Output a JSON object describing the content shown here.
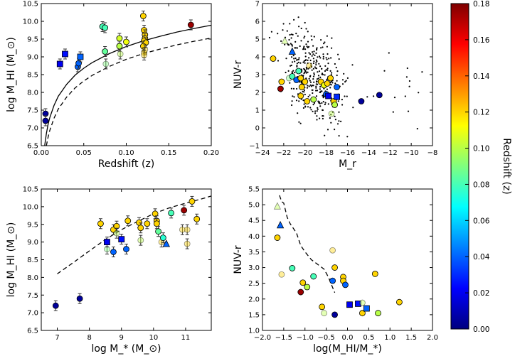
{
  "chart_data": [
    {
      "type": "scatter",
      "title": "",
      "xlabel": "Redshift (z)",
      "ylabel": "log M_HI (M_⊙)",
      "xlim": [
        0.0,
        0.2
      ],
      "ylim": [
        6.5,
        10.5
      ],
      "xticks": [
        "0.00",
        "0.05",
        "0.10",
        "0.15",
        "0.20"
      ],
      "yticks": [
        "6.5",
        "7.0",
        "7.5",
        "8.0",
        "8.5",
        "9.0",
        "9.5",
        "10.0",
        "10.5"
      ],
      "curves": [
        {
          "name": "detection limit (solid)",
          "style": "solid",
          "x": [
            0.004,
            0.006,
            0.008,
            0.01,
            0.015,
            0.02,
            0.03,
            0.04,
            0.05,
            0.06,
            0.08,
            0.1,
            0.12,
            0.14,
            0.16,
            0.18,
            0.2
          ],
          "y": [
            6.5,
            6.84,
            7.1,
            7.29,
            7.63,
            7.89,
            8.23,
            8.49,
            8.68,
            8.84,
            9.09,
            9.29,
            9.45,
            9.58,
            9.7,
            9.8,
            9.89
          ]
        },
        {
          "name": "detection limit (dashed)",
          "style": "dashed",
          "x": [
            0.006,
            0.008,
            0.01,
            0.015,
            0.02,
            0.03,
            0.04,
            0.05,
            0.06,
            0.08,
            0.1,
            0.12,
            0.14,
            0.16,
            0.18,
            0.2
          ],
          "y": [
            6.5,
            6.74,
            6.93,
            7.27,
            7.53,
            7.87,
            8.13,
            8.32,
            8.48,
            8.73,
            8.93,
            9.09,
            9.22,
            9.34,
            9.44,
            9.53
          ]
        }
      ],
      "points": [
        {
          "x": 0.005,
          "y": 7.4,
          "z": 0.005,
          "m": "c"
        },
        {
          "x": 0.005,
          "y": 7.2,
          "z": 0.005,
          "m": "c"
        },
        {
          "x": 0.022,
          "y": 8.8,
          "z": 0.02,
          "m": "s"
        },
        {
          "x": 0.028,
          "y": 9.08,
          "z": 0.025,
          "m": "s"
        },
        {
          "x": 0.043,
          "y": 8.72,
          "z": 0.04,
          "m": "c"
        },
        {
          "x": 0.044,
          "y": 8.82,
          "z": 0.04,
          "m": "c"
        },
        {
          "x": 0.046,
          "y": 9.0,
          "z": 0.04,
          "m": "s"
        },
        {
          "x": 0.072,
          "y": 9.85,
          "z": 0.08,
          "m": "c"
        },
        {
          "x": 0.075,
          "y": 9.82,
          "z": 0.08,
          "m": "c"
        },
        {
          "x": 0.075,
          "y": 9.15,
          "z": 0.085,
          "m": "c"
        },
        {
          "x": 0.076,
          "y": 8.8,
          "z": 0.09,
          "m": "c",
          "faint": true
        },
        {
          "x": 0.092,
          "y": 9.52,
          "z": 0.105,
          "m": "c"
        },
        {
          "x": 0.092,
          "y": 9.3,
          "z": 0.1,
          "m": "c"
        },
        {
          "x": 0.093,
          "y": 9.08,
          "z": 0.1,
          "m": "c",
          "faint": true
        },
        {
          "x": 0.1,
          "y": 9.42,
          "z": 0.11,
          "m": "c"
        },
        {
          "x": 0.12,
          "y": 10.15,
          "z": 0.12,
          "m": "c"
        },
        {
          "x": 0.121,
          "y": 9.75,
          "z": 0.12,
          "m": "c"
        },
        {
          "x": 0.122,
          "y": 9.62,
          "z": 0.12,
          "m": "c"
        },
        {
          "x": 0.122,
          "y": 9.52,
          "z": 0.12,
          "m": "c"
        },
        {
          "x": 0.121,
          "y": 9.45,
          "z": 0.12,
          "m": "c"
        },
        {
          "x": 0.123,
          "y": 9.4,
          "z": 0.12,
          "m": "c"
        },
        {
          "x": 0.12,
          "y": 9.3,
          "z": 0.12,
          "m": "c"
        },
        {
          "x": 0.122,
          "y": 9.2,
          "z": 0.12,
          "m": "c",
          "faint": true
        },
        {
          "x": 0.121,
          "y": 9.12,
          "z": 0.12,
          "m": "c",
          "faint": true
        },
        {
          "x": 0.121,
          "y": 9.05,
          "z": 0.12,
          "m": "c",
          "faint": true
        },
        {
          "x": 0.176,
          "y": 9.9,
          "z": 0.175,
          "m": "c"
        }
      ]
    },
    {
      "type": "scatter",
      "title": "",
      "xlabel": "M_r",
      "ylabel": "NUV-r",
      "xlim": [
        -24,
        -8
      ],
      "ylim": [
        -1,
        7
      ],
      "xticks": [
        "−24",
        "−22",
        "−20",
        "−18",
        "−16",
        "−14",
        "−12",
        "−10",
        "−8"
      ],
      "yticks": [
        "−1",
        "0",
        "1",
        "2",
        "3",
        "4",
        "5",
        "6",
        "7"
      ],
      "background": "comparison sample (small black dots)",
      "points": [
        {
          "x": -22.3,
          "y": 2.2,
          "z": 0.175,
          "m": "c"
        },
        {
          "x": -22.2,
          "y": 2.6,
          "z": 0.12,
          "m": "c"
        },
        {
          "x": -23.0,
          "y": 3.9,
          "z": 0.12,
          "m": "c"
        },
        {
          "x": -21.9,
          "y": 4.9,
          "z": 0.1,
          "m": "t",
          "faint": true
        },
        {
          "x": -21.2,
          "y": 4.3,
          "z": 0.04,
          "m": "t"
        },
        {
          "x": -21.5,
          "y": 2.8,
          "z": 0.09,
          "m": "c",
          "faint": true
        },
        {
          "x": -21.2,
          "y": 2.9,
          "z": 0.08,
          "m": "c"
        },
        {
          "x": -20.6,
          "y": 3.2,
          "z": 0.08,
          "m": "c"
        },
        {
          "x": -20.8,
          "y": 2.7,
          "z": 0.04,
          "m": "c"
        },
        {
          "x": -20.4,
          "y": 2.8,
          "z": 0.12,
          "m": "c"
        },
        {
          "x": -20.3,
          "y": 2.3,
          "z": 0.12,
          "m": "c"
        },
        {
          "x": -20.0,
          "y": 2.6,
          "z": 0.12,
          "m": "c"
        },
        {
          "x": -20.4,
          "y": 1.8,
          "z": 0.12,
          "m": "c"
        },
        {
          "x": -19.8,
          "y": 1.5,
          "z": 0.12,
          "m": "c"
        },
        {
          "x": -19.2,
          "y": 1.6,
          "z": 0.1,
          "m": "c"
        },
        {
          "x": -19.6,
          "y": 3.5,
          "z": 0.12,
          "m": "c",
          "faint": true
        },
        {
          "x": -18.5,
          "y": 2.6,
          "z": 0.12,
          "m": "c"
        },
        {
          "x": -18.2,
          "y": 2.4,
          "z": 0.11,
          "m": "c"
        },
        {
          "x": -18.0,
          "y": 1.9,
          "z": 0.04,
          "m": "c"
        },
        {
          "x": -17.9,
          "y": 2.5,
          "z": 0.12,
          "m": "c"
        },
        {
          "x": -17.6,
          "y": 2.8,
          "z": 0.12,
          "m": "c"
        },
        {
          "x": -17.8,
          "y": 1.8,
          "z": 0.02,
          "m": "s"
        },
        {
          "x": -17.3,
          "y": 1.5,
          "z": 0.12,
          "m": "c"
        },
        {
          "x": -17.0,
          "y": 1.75,
          "z": 0.03,
          "m": "s"
        },
        {
          "x": -17.2,
          "y": 1.3,
          "z": 0.1,
          "m": "c"
        },
        {
          "x": -17.5,
          "y": 0.8,
          "z": 0.1,
          "m": "c",
          "faint": true
        },
        {
          "x": -17.0,
          "y": 2.3,
          "z": 0.04,
          "m": "c"
        },
        {
          "x": -14.7,
          "y": 1.5,
          "z": 0.005,
          "m": "c"
        },
        {
          "x": -13.0,
          "y": 1.85,
          "z": 0.005,
          "m": "c"
        }
      ]
    },
    {
      "type": "scatter",
      "title": "",
      "xlabel": "log M_* (M_⊙)",
      "ylabel": "log M_HI (M_⊙)",
      "xlim": [
        6.5,
        11.8
      ],
      "ylim": [
        6.5,
        10.5
      ],
      "xticks": [
        "7",
        "8",
        "9",
        "10",
        "11"
      ],
      "yticks": [
        "6.5",
        "7.0",
        "7.5",
        "8.0",
        "8.5",
        "9.0",
        "9.5",
        "10.0",
        "10.5"
      ],
      "curves": [
        {
          "name": "dashed relation",
          "style": "dashed",
          "x": [
            7.0,
            7.5,
            8.0,
            8.5,
            9.0,
            9.5,
            10.0,
            10.5,
            11.0,
            11.5,
            11.8
          ],
          "y": [
            8.1,
            8.42,
            8.75,
            9.07,
            9.35,
            9.58,
            9.8,
            9.97,
            10.1,
            10.22,
            10.3
          ]
        }
      ],
      "points": [
        {
          "x": 6.95,
          "y": 7.2,
          "z": 0.005,
          "m": "c"
        },
        {
          "x": 7.7,
          "y": 7.4,
          "z": 0.005,
          "m": "c"
        },
        {
          "x": 8.35,
          "y": 9.52,
          "z": 0.12,
          "m": "c"
        },
        {
          "x": 8.55,
          "y": 8.8,
          "z": 0.09,
          "m": "c",
          "faint": true
        },
        {
          "x": 8.55,
          "y": 9.0,
          "z": 0.02,
          "m": "s"
        },
        {
          "x": 8.75,
          "y": 9.35,
          "z": 0.12,
          "m": "c"
        },
        {
          "x": 8.75,
          "y": 8.72,
          "z": 0.04,
          "m": "c"
        },
        {
          "x": 8.85,
          "y": 9.45,
          "z": 0.12,
          "m": "c"
        },
        {
          "x": 8.85,
          "y": 9.25,
          "z": 0.1,
          "m": "c",
          "faint": true
        },
        {
          "x": 9.0,
          "y": 9.08,
          "z": 0.025,
          "m": "s"
        },
        {
          "x": 9.15,
          "y": 8.8,
          "z": 0.04,
          "m": "c"
        },
        {
          "x": 9.2,
          "y": 9.6,
          "z": 0.12,
          "m": "c"
        },
        {
          "x": 9.55,
          "y": 9.55,
          "z": 0.12,
          "m": "c"
        },
        {
          "x": 9.6,
          "y": 9.4,
          "z": 0.12,
          "m": "c"
        },
        {
          "x": 9.6,
          "y": 9.05,
          "z": 0.1,
          "m": "c",
          "faint": true
        },
        {
          "x": 9.8,
          "y": 9.52,
          "z": 0.12,
          "m": "c"
        },
        {
          "x": 10.05,
          "y": 9.8,
          "z": 0.12,
          "m": "c"
        },
        {
          "x": 10.1,
          "y": 9.6,
          "z": 0.12,
          "m": "c"
        },
        {
          "x": 10.1,
          "y": 9.52,
          "z": 0.12,
          "m": "c"
        },
        {
          "x": 10.15,
          "y": 9.3,
          "z": 0.085,
          "m": "c"
        },
        {
          "x": 10.25,
          "y": 9.0,
          "z": 0.12,
          "m": "c",
          "faint": true
        },
        {
          "x": 10.3,
          "y": 9.12,
          "z": 0.075,
          "m": "c"
        },
        {
          "x": 10.4,
          "y": 8.95,
          "z": 0.04,
          "m": "t"
        },
        {
          "x": 10.55,
          "y": 9.82,
          "z": 0.08,
          "m": "c"
        },
        {
          "x": 10.9,
          "y": 9.35,
          "z": 0.12,
          "m": "c",
          "faint": true
        },
        {
          "x": 10.95,
          "y": 9.9,
          "z": 0.175,
          "m": "c"
        },
        {
          "x": 11.05,
          "y": 9.35,
          "z": 0.12,
          "m": "c",
          "faint": true
        },
        {
          "x": 11.05,
          "y": 8.95,
          "z": 0.12,
          "m": "c",
          "faint": true
        },
        {
          "x": 11.2,
          "y": 10.15,
          "z": 0.12,
          "m": "c"
        },
        {
          "x": 11.35,
          "y": 9.65,
          "z": 0.12,
          "m": "c"
        }
      ]
    },
    {
      "type": "scatter",
      "title": "",
      "xlabel": "log(M_HI/M_*)",
      "ylabel": "NUV-r",
      "xlim": [
        -2.0,
        2.0
      ],
      "ylim": [
        1.0,
        5.5
      ],
      "xticks": [
        "−2.0",
        "−1.5",
        "−1.0",
        "−0.5",
        "0.0",
        "0.5",
        "1.0",
        "1.5",
        "2.0"
      ],
      "yticks": [
        "1.0",
        "1.5",
        "2.0",
        "2.5",
        "3.0",
        "3.5",
        "4.0",
        "4.5",
        "5.0",
        "5.5"
      ],
      "curves": [
        {
          "name": "dashed boundary",
          "style": "dashed",
          "x": [
            -1.6,
            -1.55,
            -1.5,
            -1.42,
            -1.35,
            -1.2,
            -1.1,
            -1.0,
            -0.85,
            -0.7,
            -0.55,
            -0.45,
            -0.3
          ],
          "y": [
            5.3,
            5.1,
            5.05,
            4.6,
            4.4,
            4.1,
            3.7,
            3.5,
            3.25,
            3.1,
            2.95,
            2.7,
            2.2
          ]
        }
      ],
      "points": [
        {
          "x": -1.65,
          "y": 4.95,
          "z": 0.1,
          "m": "t",
          "faint": true
        },
        {
          "x": -1.58,
          "y": 4.35,
          "z": 0.04,
          "m": "t"
        },
        {
          "x": -1.65,
          "y": 3.95,
          "z": 0.12,
          "m": "c"
        },
        {
          "x": -1.55,
          "y": 2.78,
          "z": 0.12,
          "m": "c",
          "faint": true
        },
        {
          "x": -1.3,
          "y": 2.98,
          "z": 0.08,
          "m": "c"
        },
        {
          "x": -1.1,
          "y": 2.22,
          "z": 0.175,
          "m": "c"
        },
        {
          "x": -1.05,
          "y": 2.52,
          "z": 0.12,
          "m": "c"
        },
        {
          "x": -0.95,
          "y": 2.38,
          "z": 0.1,
          "m": "c"
        },
        {
          "x": -0.8,
          "y": 2.72,
          "z": 0.08,
          "m": "c"
        },
        {
          "x": -0.6,
          "y": 1.75,
          "z": 0.12,
          "m": "c"
        },
        {
          "x": -0.55,
          "y": 1.55,
          "z": 0.1,
          "m": "c",
          "faint": true
        },
        {
          "x": -0.35,
          "y": 3.55,
          "z": 0.12,
          "m": "c",
          "faint": true
        },
        {
          "x": -0.3,
          "y": 3.0,
          "z": 0.12,
          "m": "c"
        },
        {
          "x": -0.35,
          "y": 2.58,
          "z": 0.04,
          "m": "c"
        },
        {
          "x": -0.3,
          "y": 1.5,
          "z": 0.005,
          "m": "c"
        },
        {
          "x": -0.1,
          "y": 2.7,
          "z": 0.12,
          "m": "c"
        },
        {
          "x": -0.1,
          "y": 2.58,
          "z": 0.12,
          "m": "c"
        },
        {
          "x": -0.05,
          "y": 2.45,
          "z": 0.04,
          "m": "c"
        },
        {
          "x": 0.05,
          "y": 1.82,
          "z": 0.02,
          "m": "s"
        },
        {
          "x": 0.25,
          "y": 1.85,
          "z": 0.025,
          "m": "s"
        },
        {
          "x": 0.35,
          "y": 1.88,
          "z": 0.1,
          "m": "c",
          "faint": true
        },
        {
          "x": 0.35,
          "y": 1.55,
          "z": 0.12,
          "m": "c"
        },
        {
          "x": 0.45,
          "y": 1.7,
          "z": 0.04,
          "m": "s"
        },
        {
          "x": 0.65,
          "y": 2.8,
          "z": 0.12,
          "m": "c"
        },
        {
          "x": 0.72,
          "y": 1.55,
          "z": 0.1,
          "m": "c"
        },
        {
          "x": 1.22,
          "y": 1.9,
          "z": 0.12,
          "m": "c"
        }
      ]
    }
  ],
  "colorbar": {
    "label": "Redshift (z)",
    "min": 0.0,
    "max": 0.18,
    "ticks": [
      "0.00",
      "0.02",
      "0.04",
      "0.06",
      "0.08",
      "0.10",
      "0.12",
      "0.14",
      "0.16",
      "0.18"
    ],
    "colormap": [
      "#00007f",
      "#0000ff",
      "#007fff",
      "#00ffff",
      "#7fff7f",
      "#ffff00",
      "#ff7f00",
      "#ff0000",
      "#7f0000"
    ]
  }
}
